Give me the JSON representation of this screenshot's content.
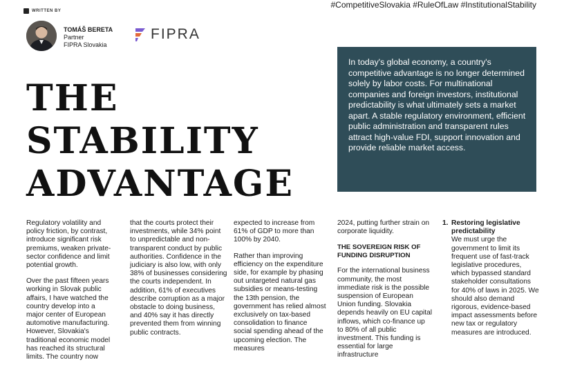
{
  "header": {
    "written_by": "WRITTEN BY",
    "hashtags": "#CompetitiveSlovakia #RuleOfLaw #InstitutionalStability"
  },
  "author": {
    "name": "TOMÁŠ BERETA",
    "role": "Partner",
    "org": "FIPRA Slovakia"
  },
  "logo": {
    "text": "FIPRA",
    "accent": "#7a5bd0"
  },
  "title": {
    "line1": "THE",
    "line2": "STABILITY",
    "line3": "ADVANTAGE"
  },
  "intro": "In today's global economy, a country's competitive advantage is no longer determined solely by labor costs. For multinational companies and foreign investors, institutional predictability is what ultimately sets a market apart. A stable regulatory environment, efficient public administration and transparent rules attract high-value FDI, support innovation and provide reliable market access.",
  "colors": {
    "intro_bg": "#2f4d58"
  },
  "columns": {
    "c1": {
      "p1": "Regulatory volatility and policy friction, by contrast, introduce significant risk premiums, weaken private-sector confidence and limit potential growth.",
      "p2": "Over the past fifteen years working in Slovak public affairs, I have watched the country develop into a major center of European automotive manufacturing. However, Slovakia's traditional economic model has reached its structural limits. The country now"
    },
    "c2": {
      "p1": "that the courts protect their investments, while 34% point to unpredictable and non-transparent conduct by public authorities. Confidence in the judiciary is also low, with only 38% of businesses considering the courts independent. In addition, 61% of executives describe corruption as a major obstacle to doing business, and 40% say it has directly prevented them from winning public contracts."
    },
    "c3": {
      "p1": "expected to increase from 61% of GDP to more than 100% by 2040.",
      "p2": "Rather than improving efficiency on the expenditure side, for example by phasing out untargeted natural gas subsidies or means-testing the 13th pension, the government has relied almost exclusively on tax-based consolidation to finance social spending ahead of the upcoming election. The measures"
    },
    "c4": {
      "p1": "2024, putting further strain on corporate liquidity.",
      "subhead": "THE SOVEREIGN RISK OF FUNDING DISRUPTION",
      "p2": "For the international business community, the most immediate risk is the possible suspension of European Union funding. Slovakia depends heavily on EU capital inflows, which co-finance up to 80% of all public investment. This funding is essential for large infrastructure"
    },
    "c5": {
      "num": "1.",
      "item_title": "Restoring legislative predictability",
      "item_body": "We must urge the government to limit its frequent use of fast-track legislative procedures, which bypassed standard stakeholder consultations for 40% of laws in 2025. We should also demand rigorous, evidence-based impact assessments before new tax or regulatory measures are introduced."
    }
  }
}
